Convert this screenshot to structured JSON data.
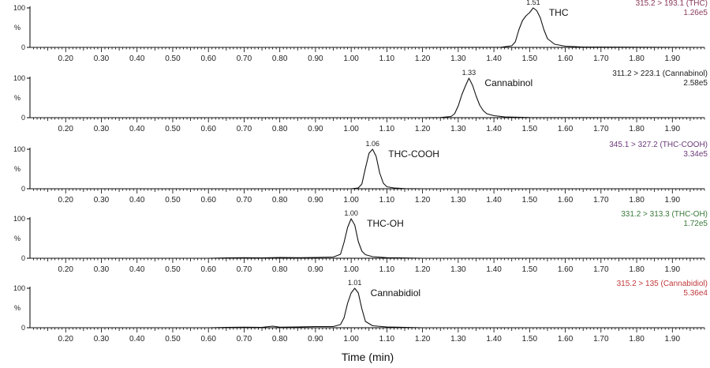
{
  "chart_data": {
    "type": "line",
    "xlabel": "Time (min)",
    "xlim": [
      0.1,
      1.99
    ],
    "ylim": [
      0,
      100
    ],
    "y_tick_labels": [
      "0",
      "%",
      "100"
    ],
    "x_tick_labels": [
      "0.20",
      "0.30",
      "0.40",
      "0.50",
      "0.60",
      "0.70",
      "0.80",
      "0.90",
      "1.00",
      "1.10",
      "1.20",
      "1.30",
      "1.40",
      "1.50",
      "1.60",
      "1.70",
      "1.80",
      "1.90"
    ],
    "panels": [
      {
        "compound": "THC",
        "transition": "315.2 > 193.1 (THC)",
        "intensity": "1.26e5",
        "color": "#8b3a5a",
        "peak_label": "1.51",
        "x": [
          0.1,
          1.2,
          1.42,
          1.45,
          1.46,
          1.47,
          1.48,
          1.49,
          1.5,
          1.51,
          1.52,
          1.53,
          1.54,
          1.55,
          1.57,
          1.6,
          1.65,
          1.99
        ],
        "y": [
          0,
          0,
          0.5,
          4,
          14,
          45,
          68,
          80,
          88,
          100,
          93,
          75,
          45,
          22,
          8,
          3,
          1,
          0
        ]
      },
      {
        "compound": "Cannabinol",
        "transition": "311.2 > 223.1 (Cannabinol)",
        "intensity": "2.58e5",
        "color": "#222222",
        "peak_label": "1.33",
        "x": [
          0.1,
          1.2,
          1.25,
          1.28,
          1.29,
          1.3,
          1.31,
          1.32,
          1.33,
          1.34,
          1.35,
          1.36,
          1.37,
          1.38,
          1.4,
          1.43,
          1.5,
          1.99
        ],
        "y": [
          0,
          0,
          0.5,
          3,
          10,
          30,
          58,
          80,
          100,
          82,
          55,
          32,
          18,
          10,
          5,
          2,
          0.5,
          0
        ]
      },
      {
        "compound": "THC-COOH",
        "transition": "345.1 > 327.2 (THC-COOH)",
        "intensity": "3.34e5",
        "color": "#6a3a7a",
        "peak_label": "1.06",
        "x": [
          0.1,
          1.0,
          1.02,
          1.03,
          1.04,
          1.05,
          1.06,
          1.07,
          1.08,
          1.09,
          1.1,
          1.12,
          1.15,
          1.2,
          1.99
        ],
        "y": [
          0,
          0,
          2,
          12,
          52,
          90,
          100,
          82,
          40,
          14,
          5,
          2,
          0.5,
          0,
          0
        ]
      },
      {
        "compound": "THC-OH",
        "transition": "331.2 > 313.3 (THC-OH)",
        "intensity": "1.72e5",
        "color": "#3a7a3a",
        "peak_label": "1.00",
        "x": [
          0.1,
          0.6,
          0.65,
          0.7,
          0.75,
          0.8,
          0.85,
          0.9,
          0.95,
          0.97,
          0.98,
          0.99,
          1.0,
          1.01,
          1.02,
          1.03,
          1.04,
          1.06,
          1.1,
          1.2,
          1.99
        ],
        "y": [
          0,
          0,
          1,
          1.5,
          1,
          2,
          1.5,
          2,
          3,
          10,
          40,
          78,
          100,
          84,
          42,
          18,
          9,
          4,
          1.5,
          0,
          0
        ]
      },
      {
        "compound": "Cannabidiol",
        "transition": "315.2 > 135 (Cannabidiol)",
        "intensity": "5.36e4",
        "color": "#c0393b",
        "peak_label": "1.01",
        "x": [
          0.1,
          0.6,
          0.65,
          0.7,
          0.75,
          0.78,
          0.8,
          0.85,
          0.9,
          0.95,
          0.97,
          0.98,
          0.99,
          1.0,
          1.01,
          1.02,
          1.03,
          1.04,
          1.06,
          1.1,
          1.2,
          1.99
        ],
        "y": [
          0,
          0,
          1,
          1.5,
          1,
          4,
          1.5,
          2,
          3,
          3,
          8,
          25,
          62,
          88,
          100,
          88,
          48,
          16,
          5,
          2,
          0,
          0
        ]
      }
    ]
  }
}
